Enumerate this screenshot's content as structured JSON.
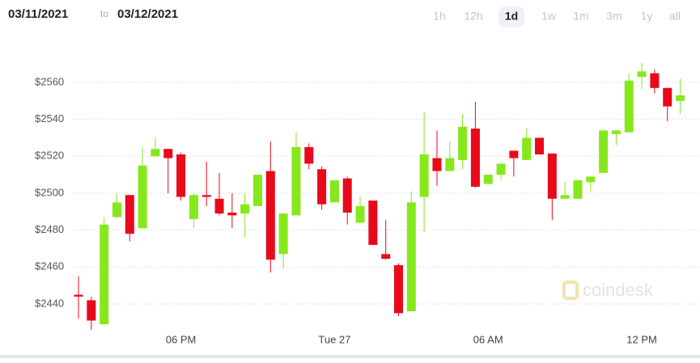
{
  "header": {
    "from": "03/11/2021",
    "to_label": "to",
    "to": "03/12/2021",
    "ranges": [
      "1h",
      "12h",
      "1d",
      "1w",
      "1m",
      "3m",
      "1y",
      "all"
    ],
    "selected_range": "1d"
  },
  "chart_data": {
    "type": "candlestick",
    "watermark": "coindesk",
    "categories": [
      null,
      null,
      null,
      null,
      null,
      null,
      null,
      null,
      "06 PM",
      null,
      null,
      null,
      null,
      null,
      null,
      null,
      null,
      null,
      null,
      null,
      "Tue 27",
      null,
      null,
      null,
      null,
      null,
      null,
      null,
      null,
      null,
      null,
      null,
      "06 AM",
      null,
      null,
      null,
      null,
      null,
      null,
      null,
      null,
      null,
      null,
      null,
      "12 PM",
      null,
      null,
      null
    ],
    "open": [
      2445,
      2442,
      2429,
      2487,
      2499,
      2481,
      2520,
      2524,
      2521,
      2486,
      2499,
      2497,
      2489.5,
      2489,
      2493,
      2512,
      2467,
      2488,
      2525,
      2513,
      2495,
      2508,
      2484,
      2496,
      2467,
      2461,
      2436,
      2498,
      2519,
      2512,
      2518,
      2535,
      2505,
      2510,
      2523,
      2518,
      2530,
      2521.5,
      2497,
      2497,
      2506,
      2511,
      2532,
      2533,
      2563,
      2565,
      2557,
      2550
    ],
    "high": [
      2455,
      2444,
      2487,
      2500,
      2499,
      2525,
      2530,
      2524,
      2522,
      2500,
      2517,
      2511,
      2500,
      2500,
      2510,
      2528,
      2489,
      2533,
      2527,
      2514.5,
      2507,
      2509,
      2498,
      2496,
      2485.5,
      2462,
      2501,
      2544,
      2534,
      2528,
      2543,
      2549.5,
      2510,
      2516,
      2523,
      2535,
      2530,
      2521.5,
      2506,
      2507,
      2509,
      2534,
      2534,
      2565,
      2570.5,
      2567,
      2557,
      2562
    ],
    "low": [
      2432,
      2426,
      2429,
      2487,
      2474,
      2481,
      2520,
      2500,
      2496,
      2481,
      2493,
      2488,
      2481,
      2476,
      2493,
      2457,
      2459,
      2488,
      2513,
      2491,
      2495,
      2483,
      2484,
      2472,
      2464,
      2433.5,
      2436,
      2479,
      2504,
      2512,
      2513,
      2503,
      2505,
      2507.5,
      2509,
      2518,
      2521,
      2485.5,
      2497,
      2497,
      2501,
      2511,
      2526,
      2533,
      2556.5,
      2554,
      2539,
      2543
    ],
    "close": [
      2444,
      2431,
      2483,
      2495,
      2478,
      2515,
      2524,
      2519,
      2498,
      2499,
      2498,
      2489,
      2488,
      2494,
      2510,
      2464,
      2489,
      2525,
      2516,
      2494,
      2507,
      2489.5,
      2493,
      2472,
      2464.5,
      2435,
      2495,
      2521,
      2512,
      2519,
      2536,
      2503.5,
      2510,
      2516,
      2519,
      2530,
      2521,
      2497,
      2499,
      2507,
      2509,
      2534,
      2534,
      2561,
      2566,
      2557,
      2547,
      2553
    ],
    "up_color": "#86e81c",
    "down_color": "#e8091a",
    "ylim": [
      2424,
      2580
    ],
    "yticks": [
      {
        "value": 2440,
        "label": "$2440"
      },
      {
        "value": 2460,
        "label": "$2460"
      },
      {
        "value": 2480,
        "label": "$2480"
      },
      {
        "value": 2500,
        "label": "$2500"
      },
      {
        "value": 2520,
        "label": "$2520"
      },
      {
        "value": 2540,
        "label": "$2540"
      },
      {
        "value": 2560,
        "label": "$2560"
      }
    ],
    "grid": true
  }
}
